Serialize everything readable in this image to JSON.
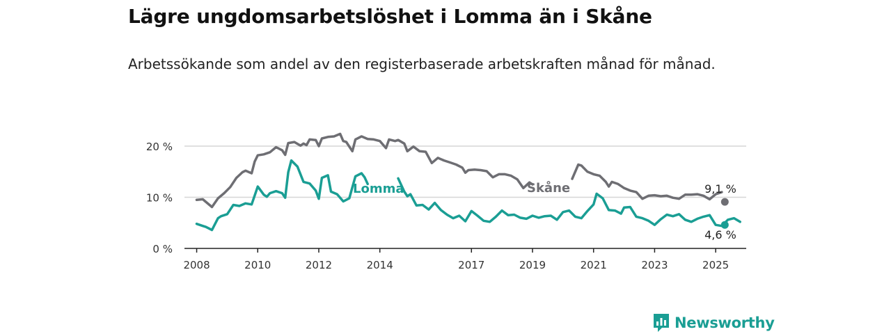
{
  "title": "Lägre ungdomsarbetslöshet i Lomma än i Skåne",
  "subtitle": "Arbetssökande som andel av den registerbaserade arbetskraften månad för månad.",
  "brand": "Newsworthy",
  "colors": {
    "skane": "#6e6e73",
    "lomma": "#1a9e94",
    "grid": "#d6d6d6",
    "axis": "#222222"
  },
  "chart_data": {
    "type": "line",
    "title": "Lägre ungdomsarbetslöshet i Lomma än i Skåne",
    "xlabel": "",
    "ylabel": "",
    "xlim": [
      2007.6,
      2026.0
    ],
    "ylim": [
      0,
      20
    ],
    "yticks": [
      0,
      10,
      20
    ],
    "ytick_labels": [
      "0 %",
      "10 %",
      "20 %"
    ],
    "xticks": [
      2008,
      2010,
      2012,
      2014,
      2017,
      2019,
      2021,
      2023,
      2025
    ],
    "xtick_labels": [
      "2008",
      "2010",
      "2012",
      "2014",
      "2017",
      "2019",
      "2021",
      "2023",
      "2025"
    ],
    "grid": true,
    "series": [
      {
        "name": "Skåne",
        "end_label": "9,1 %",
        "points": [
          [
            2008.0,
            9.5
          ],
          [
            2008.2,
            9.6
          ],
          [
            2008.5,
            8.1
          ],
          [
            2008.7,
            9.8
          ],
          [
            2008.9,
            10.8
          ],
          [
            2009.1,
            12.0
          ],
          [
            2009.3,
            13.8
          ],
          [
            2009.5,
            14.9
          ],
          [
            2009.6,
            15.2
          ],
          [
            2009.8,
            14.7
          ],
          [
            2009.9,
            17.0
          ],
          [
            2010.0,
            18.2
          ],
          [
            2010.2,
            18.4
          ],
          [
            2010.4,
            18.8
          ],
          [
            2010.6,
            19.8
          ],
          [
            2010.8,
            19.2
          ],
          [
            2010.9,
            18.3
          ],
          [
            2011.0,
            20.6
          ],
          [
            2011.2,
            20.8
          ],
          [
            2011.4,
            20.1
          ],
          [
            2011.5,
            20.5
          ],
          [
            2011.6,
            20.2
          ],
          [
            2011.7,
            21.3
          ],
          [
            2011.9,
            21.2
          ],
          [
            2012.0,
            20.0
          ],
          [
            2012.1,
            21.5
          ],
          [
            2012.3,
            21.8
          ],
          [
            2012.5,
            21.9
          ],
          [
            2012.7,
            22.4
          ],
          [
            2012.8,
            21.0
          ],
          [
            2012.9,
            20.8
          ],
          [
            2013.1,
            19.0
          ],
          [
            2013.2,
            21.3
          ],
          [
            2013.4,
            21.9
          ],
          [
            2013.6,
            21.4
          ],
          [
            2013.8,
            21.3
          ],
          [
            2014.0,
            21.0
          ],
          [
            2014.2,
            19.6
          ],
          [
            2014.3,
            21.3
          ],
          [
            2014.5,
            21.0
          ],
          [
            2014.6,
            21.2
          ],
          [
            2014.8,
            20.5
          ],
          [
            2014.9,
            19.0
          ],
          [
            2015.1,
            19.9
          ],
          [
            2015.3,
            19.0
          ],
          [
            2015.5,
            18.9
          ],
          [
            2015.7,
            16.7
          ],
          [
            2015.9,
            17.7
          ],
          [
            2016.1,
            17.2
          ],
          [
            2016.3,
            16.8
          ],
          [
            2016.5,
            16.4
          ],
          [
            2016.7,
            15.8
          ],
          [
            2016.8,
            14.8
          ],
          [
            2016.9,
            15.3
          ],
          [
            2017.1,
            15.4
          ],
          [
            2017.3,
            15.3
          ],
          [
            2017.5,
            15.1
          ],
          [
            2017.7,
            13.9
          ],
          [
            2017.9,
            14.5
          ],
          [
            2018.1,
            14.5
          ],
          [
            2018.3,
            14.2
          ],
          [
            2018.5,
            13.5
          ],
          [
            2018.7,
            11.8
          ],
          [
            2018.9,
            12.9
          ],
          [
            2019.0,
            12.5
          ]
        ],
        "points_after_label": [
          [
            2020.3,
            13.6
          ],
          [
            2020.5,
            16.4
          ],
          [
            2020.6,
            16.2
          ],
          [
            2020.8,
            15.0
          ],
          [
            2021.0,
            14.5
          ],
          [
            2021.2,
            14.2
          ],
          [
            2021.4,
            13.0
          ],
          [
            2021.5,
            12.1
          ],
          [
            2021.6,
            13.0
          ],
          [
            2021.8,
            12.6
          ],
          [
            2022.0,
            11.8
          ],
          [
            2022.2,
            11.3
          ],
          [
            2022.4,
            11.0
          ],
          [
            2022.6,
            9.7
          ],
          [
            2022.8,
            10.3
          ],
          [
            2023.0,
            10.4
          ],
          [
            2023.2,
            10.2
          ],
          [
            2023.4,
            10.3
          ],
          [
            2023.6,
            9.9
          ],
          [
            2023.8,
            9.7
          ],
          [
            2024.0,
            10.5
          ],
          [
            2024.2,
            10.5
          ],
          [
            2024.4,
            10.6
          ],
          [
            2024.6,
            10.3
          ],
          [
            2024.8,
            9.6
          ],
          [
            2025.0,
            10.6
          ],
          [
            2025.2,
            11.0
          ]
        ],
        "end_point": [
          2025.3,
          9.1
        ]
      },
      {
        "name": "Lomma",
        "end_label": "4,6 %",
        "points": [
          [
            2008.0,
            4.8
          ],
          [
            2008.2,
            4.4
          ],
          [
            2008.3,
            4.2
          ],
          [
            2008.5,
            3.6
          ],
          [
            2008.7,
            5.9
          ],
          [
            2008.8,
            6.3
          ],
          [
            2009.0,
            6.7
          ],
          [
            2009.2,
            8.5
          ],
          [
            2009.4,
            8.3
          ],
          [
            2009.6,
            8.8
          ],
          [
            2009.8,
            8.6
          ],
          [
            2010.0,
            12.1
          ],
          [
            2010.2,
            10.5
          ],
          [
            2010.3,
            10.1
          ],
          [
            2010.4,
            10.8
          ],
          [
            2010.6,
            11.2
          ],
          [
            2010.8,
            10.8
          ],
          [
            2010.9,
            9.9
          ],
          [
            2011.0,
            14.9
          ],
          [
            2011.1,
            17.2
          ],
          [
            2011.3,
            16.0
          ],
          [
            2011.5,
            13.0
          ],
          [
            2011.7,
            12.7
          ],
          [
            2011.9,
            11.3
          ],
          [
            2012.0,
            9.7
          ],
          [
            2012.1,
            13.8
          ],
          [
            2012.3,
            14.3
          ],
          [
            2012.4,
            11.1
          ],
          [
            2012.6,
            10.6
          ],
          [
            2012.8,
            9.2
          ],
          [
            2013.0,
            9.8
          ],
          [
            2013.2,
            14.1
          ],
          [
            2013.4,
            14.7
          ],
          [
            2013.5,
            13.9
          ],
          [
            2013.6,
            12.6
          ]
        ],
        "points_after_label": [
          [
            2014.6,
            13.7
          ],
          [
            2014.8,
            11.1
          ],
          [
            2014.9,
            10.2
          ],
          [
            2015.0,
            10.6
          ],
          [
            2015.2,
            8.4
          ],
          [
            2015.4,
            8.5
          ],
          [
            2015.6,
            7.6
          ],
          [
            2015.8,
            8.9
          ],
          [
            2016.0,
            7.5
          ],
          [
            2016.2,
            6.6
          ],
          [
            2016.4,
            5.9
          ],
          [
            2016.6,
            6.4
          ],
          [
            2016.8,
            5.3
          ],
          [
            2017.0,
            7.3
          ],
          [
            2017.2,
            6.4
          ],
          [
            2017.4,
            5.4
          ],
          [
            2017.6,
            5.2
          ],
          [
            2017.8,
            6.2
          ],
          [
            2018.0,
            7.4
          ],
          [
            2018.2,
            6.5
          ],
          [
            2018.4,
            6.6
          ],
          [
            2018.6,
            6.0
          ],
          [
            2018.8,
            5.8
          ],
          [
            2019.0,
            6.4
          ],
          [
            2019.2,
            6.0
          ],
          [
            2019.4,
            6.3
          ],
          [
            2019.6,
            6.4
          ],
          [
            2019.8,
            5.6
          ],
          [
            2020.0,
            7.1
          ],
          [
            2020.2,
            7.4
          ],
          [
            2020.4,
            6.2
          ],
          [
            2020.6,
            5.9
          ],
          [
            2020.8,
            7.3
          ],
          [
            2021.0,
            8.6
          ],
          [
            2021.1,
            10.7
          ],
          [
            2021.3,
            9.8
          ],
          [
            2021.5,
            7.5
          ],
          [
            2021.7,
            7.4
          ],
          [
            2021.9,
            6.8
          ],
          [
            2022.0,
            8.0
          ],
          [
            2022.2,
            8.1
          ],
          [
            2022.4,
            6.2
          ],
          [
            2022.6,
            5.9
          ],
          [
            2022.8,
            5.4
          ],
          [
            2023.0,
            4.6
          ],
          [
            2023.2,
            5.7
          ],
          [
            2023.4,
            6.6
          ],
          [
            2023.6,
            6.3
          ],
          [
            2023.8,
            6.7
          ],
          [
            2024.0,
            5.6
          ],
          [
            2024.2,
            5.2
          ],
          [
            2024.4,
            5.8
          ],
          [
            2024.6,
            6.2
          ],
          [
            2024.8,
            6.5
          ],
          [
            2025.0,
            4.6
          ],
          [
            2025.2,
            4.4
          ],
          [
            2025.4,
            5.6
          ],
          [
            2025.6,
            5.9
          ],
          [
            2025.8,
            5.2
          ]
        ],
        "end_point": [
          2025.3,
          4.6
        ]
      }
    ]
  }
}
